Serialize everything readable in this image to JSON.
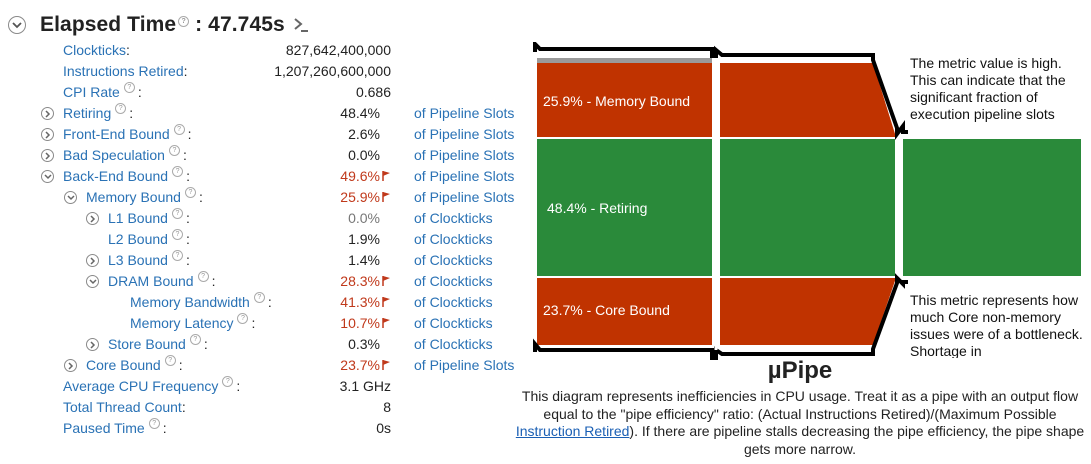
{
  "header": {
    "title": "Elapsed Time",
    "value": ": 47.745s"
  },
  "metrics": [
    {
      "label": "Clockticks",
      "value": "827,642,400,000",
      "unit": ""
    },
    {
      "label": "Instructions Retired",
      "value": "1,207,260,600,000",
      "unit": ""
    },
    {
      "label": "CPI Rate",
      "value": "0.686",
      "unit": ""
    },
    {
      "label": "Retiring",
      "value": "48.4%",
      "unit": "of Pipeline Slots"
    },
    {
      "label": "Front-End Bound",
      "value": "2.6%",
      "unit": "of Pipeline Slots"
    },
    {
      "label": "Bad Speculation",
      "value": "0.0%",
      "unit": "of Pipeline Slots"
    },
    {
      "label": "Back-End Bound",
      "value": "49.6%",
      "unit": "of Pipeline Slots"
    },
    {
      "label": "Memory Bound",
      "value": "25.9%",
      "unit": "of Pipeline Slots"
    },
    {
      "label": "L1 Bound",
      "value": "0.0%",
      "unit": "of Clockticks"
    },
    {
      "label": "L2 Bound",
      "value": "1.9%",
      "unit": "of Clockticks"
    },
    {
      "label": "L3 Bound",
      "value": "1.4%",
      "unit": "of Clockticks"
    },
    {
      "label": "DRAM Bound",
      "value": "28.3%",
      "unit": "of Clockticks"
    },
    {
      "label": "Memory Bandwidth",
      "value": "41.3%",
      "unit": "of Clockticks"
    },
    {
      "label": "Memory Latency",
      "value": "10.7%",
      "unit": "of Clockticks"
    },
    {
      "label": "Store Bound",
      "value": "0.3%",
      "unit": "of Clockticks"
    },
    {
      "label": "Core Bound",
      "value": "23.7%",
      "unit": "of Pipeline Slots"
    },
    {
      "label": "Average CPU Frequency",
      "value": "3.1 GHz",
      "unit": ""
    },
    {
      "label": "Total Thread Count",
      "value": "8",
      "unit": ""
    },
    {
      "label": "Paused Time",
      "value": "0s",
      "unit": ""
    }
  ],
  "pipe": {
    "title": "µPipe",
    "segments": {
      "memory_bound": "25.9% - Memory Bound",
      "retiring": "48.4% - Retiring",
      "core_bound": "23.7% - Core Bound"
    },
    "note_top": "The metric value is high. This can indicate that the significant fraction of execution pipeline slots",
    "note_bottom": "This metric represents how much Core non-memory issues were of a bottleneck. Shortage in",
    "desc_before": "This diagram represents inefficiencies in CPU usage. Treat it as a pipe with an output flow equal to the \"pipe efficiency\" ratio: (Actual Instructions Retired)/(Maximum Possible ",
    "desc_link": "Instruction Retired",
    "desc_after": "). If there are pipeline stalls decreasing the pipe efficiency, the pipe shape gets more narrow."
  },
  "colors": {
    "link": "#2a72b5",
    "warning": "#c0391b",
    "bound": "#c03300",
    "retiring": "#2a8a3a"
  }
}
